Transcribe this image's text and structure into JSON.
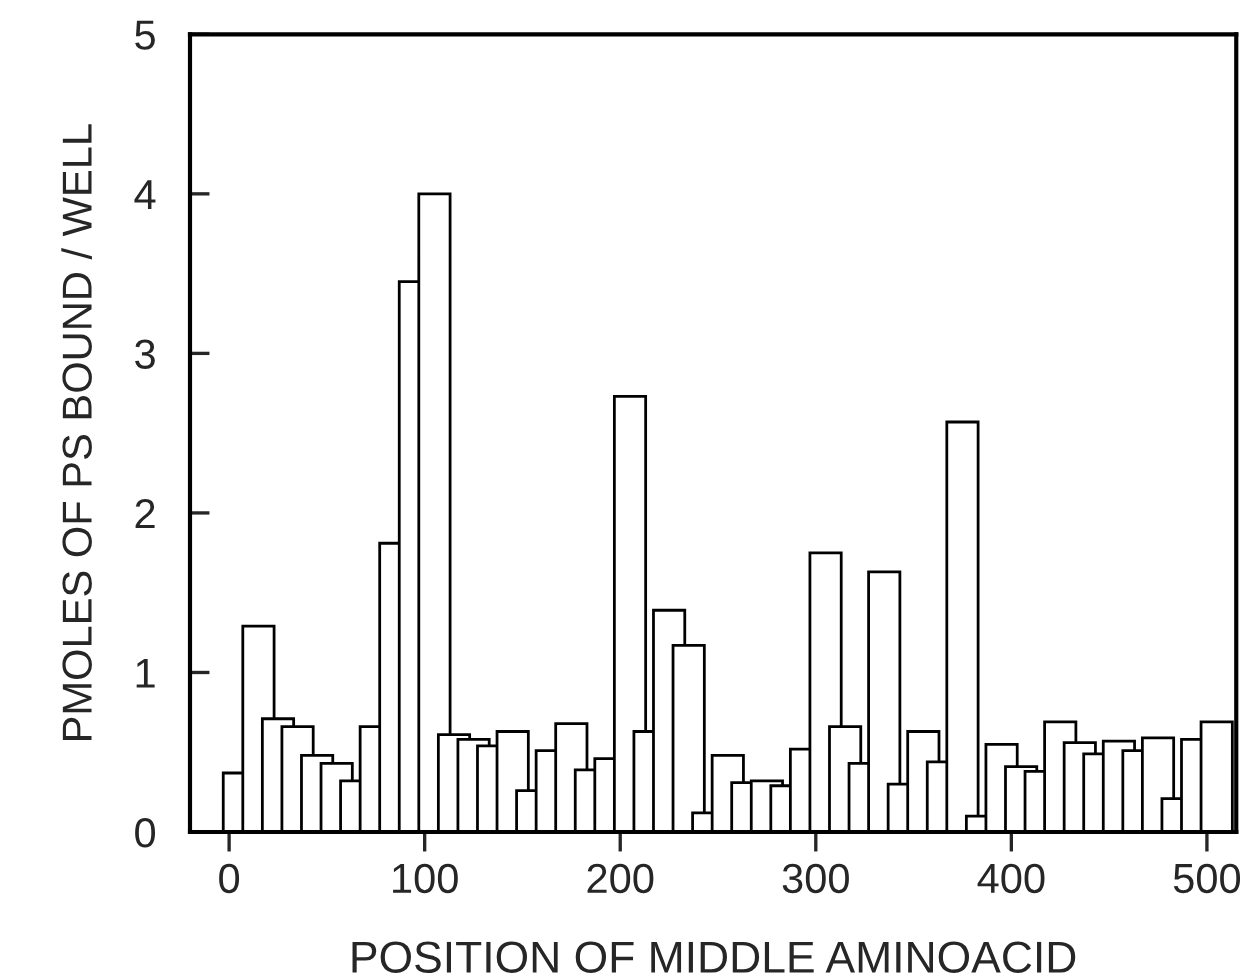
{
  "chart_data": {
    "type": "bar",
    "xlabel": "POSITION OF MIDDLE AMINOACID",
    "ylabel": "PMOLES OF PS BOUND / WELL",
    "x": [
      5,
      15,
      25,
      35,
      45,
      55,
      65,
      75,
      85,
      95,
      105,
      115,
      125,
      135,
      145,
      155,
      165,
      175,
      185,
      195,
      205,
      215,
      225,
      235,
      245,
      255,
      265,
      275,
      285,
      295,
      305,
      315,
      325,
      335,
      345,
      355,
      365,
      375,
      385,
      395,
      405,
      415,
      425,
      435,
      445,
      455,
      465,
      475,
      485,
      495,
      505
    ],
    "values": [
      0.37,
      1.29,
      0.71,
      0.66,
      0.48,
      0.43,
      0.32,
      0.66,
      1.81,
      3.45,
      4.0,
      0.61,
      0.58,
      0.54,
      0.63,
      0.26,
      0.51,
      0.68,
      0.39,
      0.46,
      2.73,
      0.63,
      1.39,
      1.17,
      0.12,
      0.48,
      0.31,
      0.32,
      0.29,
      0.52,
      1.75,
      0.66,
      0.43,
      1.63,
      0.3,
      0.63,
      0.44,
      2.57,
      0.1,
      0.55,
      0.41,
      0.38,
      0.69,
      0.56,
      0.49,
      0.57,
      0.51,
      0.59,
      0.21,
      0.58,
      0.69
    ],
    "color": "#ffffff",
    "xlim": [
      -20,
      515
    ],
    "ylim": [
      0,
      5
    ],
    "xticks": [
      0,
      100,
      200,
      300,
      400,
      500
    ],
    "yticks": [
      0,
      1,
      2,
      3,
      4,
      5
    ],
    "grid": false
  }
}
